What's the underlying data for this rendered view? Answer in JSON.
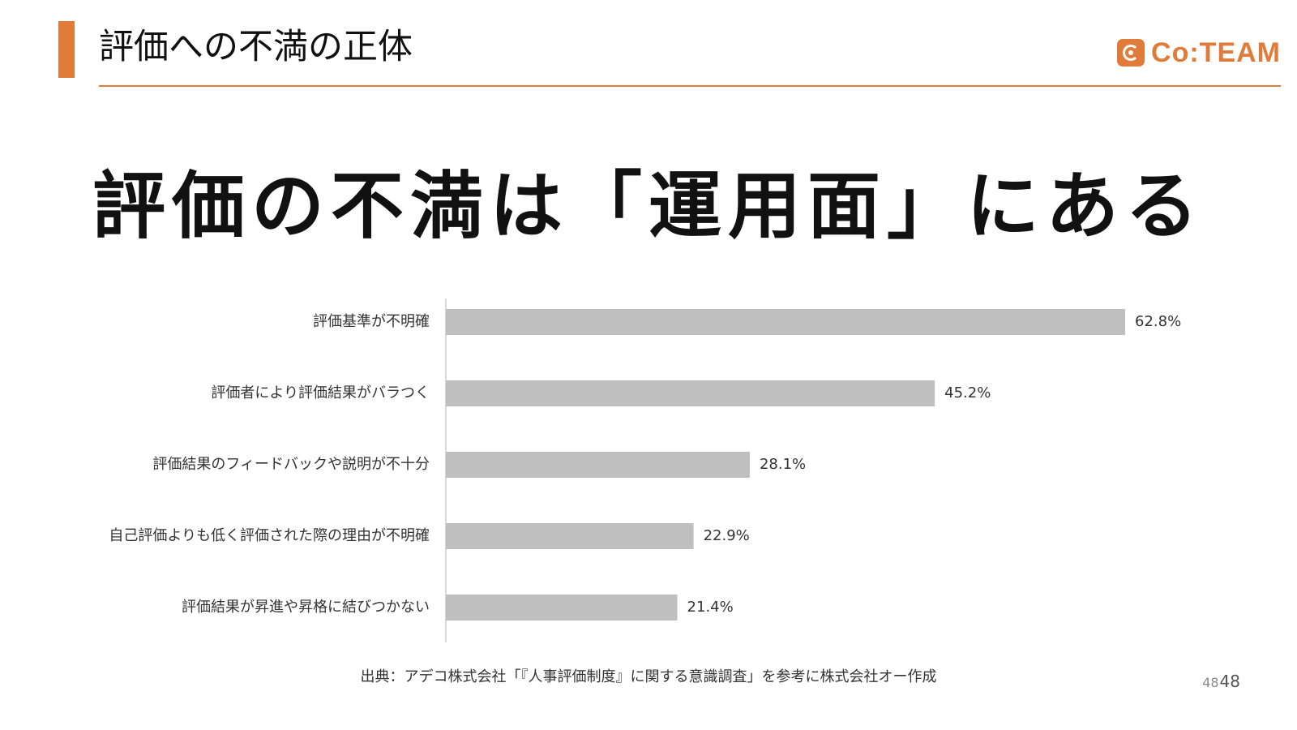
{
  "header": {
    "title": "評価への不満の正体",
    "logo_text": "Co:TEAM",
    "accent_color": "#e07b3a"
  },
  "main": {
    "heading": "評価の不満は「運用面」にある"
  },
  "chart_data": {
    "type": "bar",
    "orientation": "horizontal",
    "categories": [
      "評価基準が不明確",
      "評価者により評価結果がバラつく",
      "評価結果のフィードバックや説明が不十分",
      "自己評価よりも低く評価された際の理由が不明確",
      "評価結果が昇進や昇格に結びつかない"
    ],
    "values": [
      62.8,
      45.2,
      28.1,
      22.9,
      21.4
    ],
    "value_labels": [
      "62.8%",
      "45.2%",
      "28.1%",
      "22.9%",
      "21.4%"
    ],
    "xlim": [
      0,
      70
    ],
    "bar_color": "#bfbfbf",
    "grid": false
  },
  "footer": {
    "source": "出典：アデコ株式会社「『人事評価制度』に関する意識調査」を参考に株式会社オー作成",
    "page_small": "48",
    "page": "48"
  }
}
